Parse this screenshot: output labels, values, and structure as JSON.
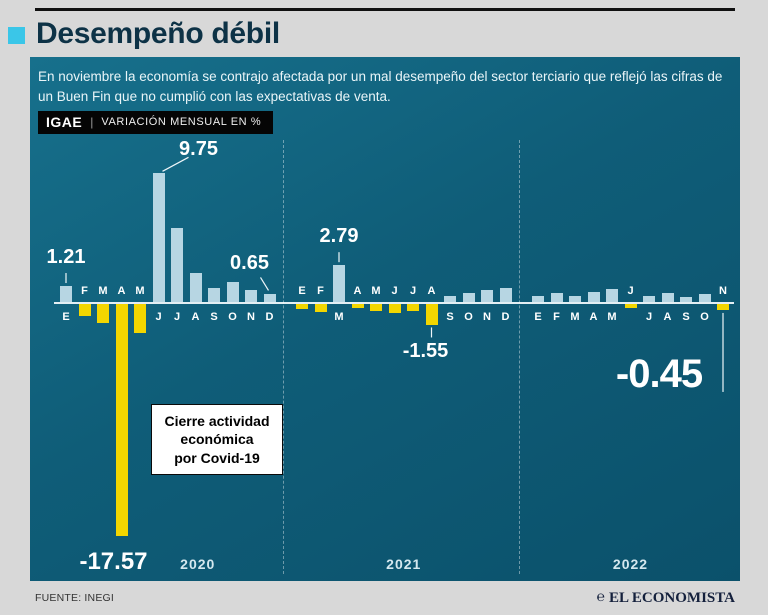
{
  "header": {
    "title": "Desempeño débil"
  },
  "intro": "En noviembre la economía se contrajo afectada por un mal desempeño del sector terciario que reflejó las cifras de un Buen Fin que no cumplió con las expectativas de venta.",
  "tag": {
    "name": "IGAE",
    "sep": "|",
    "desc": "VARIACIÓN MENSUAL EN %"
  },
  "chart_data": {
    "type": "bar",
    "title": "IGAE — variación mensual en %",
    "ylabel": "Variación mensual en %",
    "ylim": [
      -18,
      10
    ],
    "grid": false,
    "colors": {
      "positive": "#b7d6e3",
      "negative": "#f3d600"
    },
    "groups": [
      {
        "year": "2020",
        "months": [
          "E",
          "F",
          "M",
          "A",
          "M",
          "J",
          "J",
          "A",
          "S",
          "O",
          "N",
          "D"
        ],
        "values": [
          1.21,
          -0.9,
          -1.4,
          -17.57,
          -2.2,
          9.75,
          5.6,
          2.2,
          1.1,
          1.5,
          0.9,
          0.65
        ]
      },
      {
        "year": "2021",
        "months": [
          "E",
          "F",
          "M",
          "A",
          "M",
          "J",
          "J",
          "A",
          "S",
          "O",
          "N",
          "D"
        ],
        "values": [
          -0.4,
          -0.6,
          2.79,
          -0.3,
          -0.5,
          -0.7,
          -0.5,
          -1.55,
          0.5,
          0.7,
          0.9,
          1.1
        ]
      },
      {
        "year": "2022",
        "months": [
          "E",
          "F",
          "M",
          "A",
          "M",
          "J",
          "J",
          "A",
          "S",
          "O",
          "N"
        ],
        "values": [
          0.5,
          0.7,
          0.5,
          0.8,
          1.0,
          -0.3,
          0.5,
          0.7,
          0.4,
          0.6,
          -0.45
        ]
      }
    ],
    "annotations": [
      {
        "group": 0,
        "index": 0,
        "label": "1.21",
        "placement": "above",
        "style": "normal"
      },
      {
        "group": 0,
        "index": 5,
        "label": "9.75",
        "placement": "above-right",
        "style": "normal"
      },
      {
        "group": 0,
        "index": 11,
        "label": "0.65",
        "placement": "above-left",
        "style": "normal"
      },
      {
        "group": 0,
        "index": 3,
        "label": "-17.57",
        "placement": "below-far",
        "style": "large"
      },
      {
        "group": 1,
        "index": 2,
        "label": "2.79",
        "placement": "above",
        "style": "normal"
      },
      {
        "group": 1,
        "index": 7,
        "label": "-1.55",
        "placement": "below",
        "style": "normal"
      },
      {
        "group": 2,
        "index": 10,
        "label": "-0.45",
        "placement": "below-big-left",
        "style": "big"
      }
    ]
  },
  "covid_box": {
    "lines": [
      "Cierre actividad",
      "económica",
      "por Covid-19"
    ]
  },
  "footer": {
    "source": "FUENTE: INEGI",
    "brand_mark": "℮",
    "brand": "EL ECONOMISTA"
  }
}
